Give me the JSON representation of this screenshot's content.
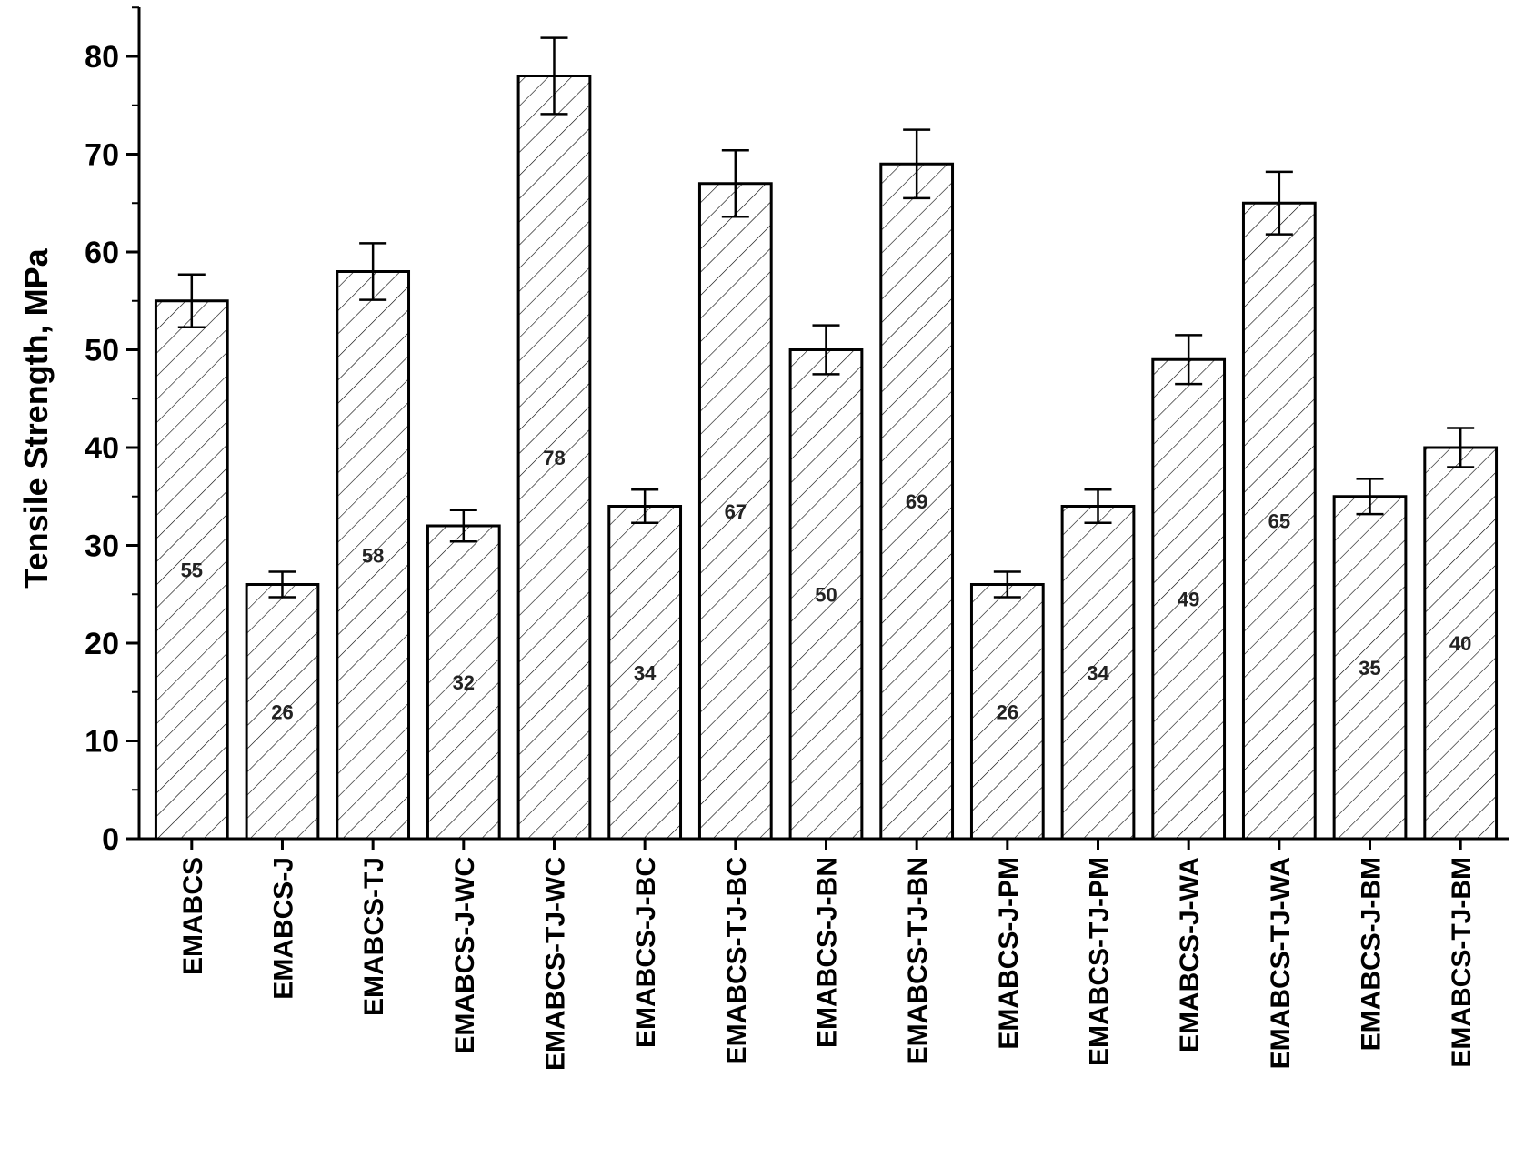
{
  "chart_data": {
    "type": "bar",
    "title": "",
    "xlabel": "",
    "ylabel": "Tensile Strength, MPa",
    "ylim": [
      0,
      80
    ],
    "yticks": [
      "0",
      "10",
      "20",
      "30",
      "40",
      "50",
      "60",
      "70",
      "80"
    ],
    "grid": false,
    "bar_pattern": "diagonal hatch",
    "bar_color": "#ffffff",
    "edge_color": "#000000",
    "categories": [
      "EMABCS",
      "EMABCS-J",
      "EMABCS-TJ",
      "EMABCS-J-WC",
      "EMABCS-TJ-WC",
      "EMABCS-J-BC",
      "EMABCS-TJ-BC",
      "EMABCS-J-BN",
      "EMABCS-TJ-BN",
      "EMABCS-J-PM",
      "EMABCS-TJ-PM",
      "EMABCS-J-WA",
      "EMABCS-TJ-WA",
      "EMABCS-J-BM",
      "EMABCS-TJ-BM"
    ],
    "values": [
      55,
      26,
      58,
      32,
      78,
      34,
      67,
      50,
      69,
      26,
      34,
      49,
      65,
      35,
      40
    ],
    "data_labels": [
      "55",
      "26",
      "58",
      "32",
      "78",
      "34",
      "67",
      "50",
      "69",
      "26",
      "34",
      "49",
      "65",
      "35",
      "40"
    ],
    "error": [
      2.7,
      1.3,
      2.9,
      1.6,
      3.9,
      1.7,
      3.4,
      2.5,
      3.5,
      1.3,
      1.7,
      2.5,
      3.2,
      1.8,
      2.0
    ]
  }
}
